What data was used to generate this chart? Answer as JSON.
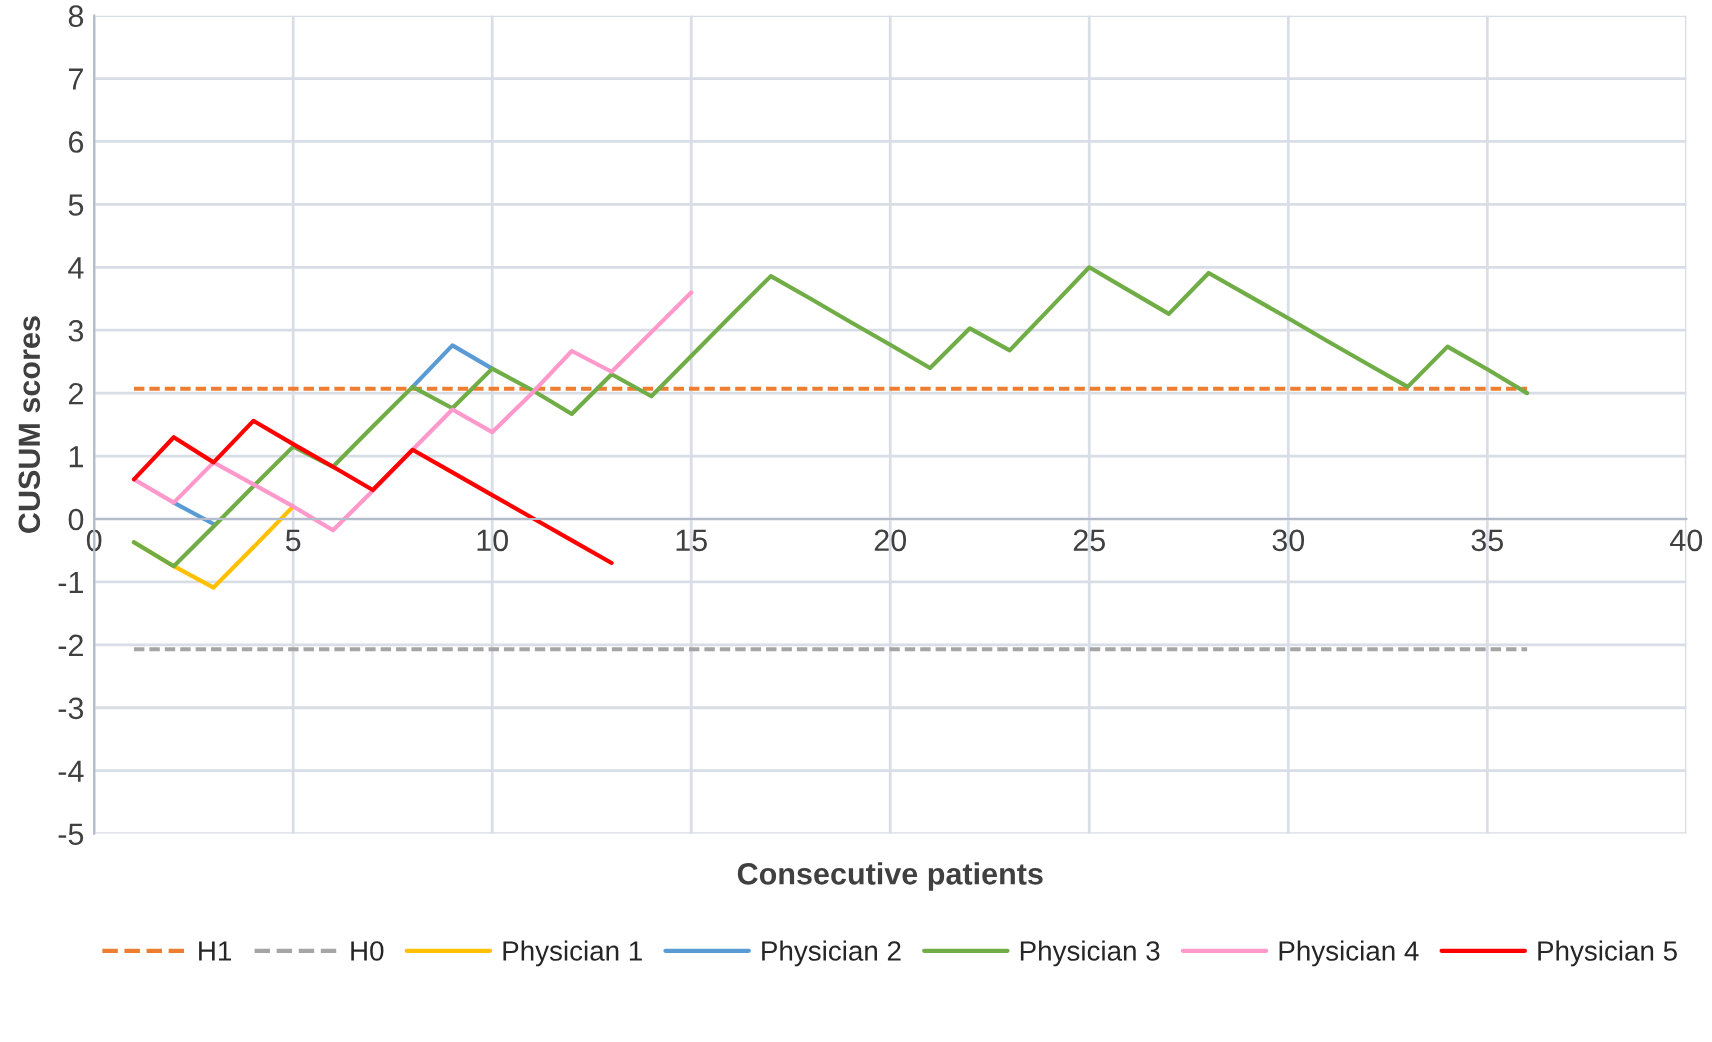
{
  "chart_data": {
    "type": "line",
    "xlabel": "Consecutive patients",
    "ylabel": "CUSUM scores",
    "xlim": [
      0,
      40
    ],
    "xticks": [
      0,
      5,
      10,
      15,
      20,
      25,
      30,
      35,
      40
    ],
    "ylim": [
      -5,
      8
    ],
    "yticks": [
      -5,
      -4,
      -3,
      -2,
      -1,
      0,
      1,
      2,
      3,
      4,
      5,
      6,
      7,
      8
    ],
    "grid": true,
    "legend": "bottom",
    "marker": "none",
    "series": [
      {
        "name": "H1",
        "color": "#ed7d31",
        "line_style": "dashed",
        "x": [
          1,
          36
        ],
        "values": [
          2.07,
          2.07
        ]
      },
      {
        "name": "H0",
        "color": "#a5a5a5",
        "line_style": "dashed",
        "x": [
          1,
          36
        ],
        "values": [
          -2.07,
          -2.07
        ]
      },
      {
        "name": "Physician 1",
        "color": "#ffc000",
        "x": [
          1,
          2,
          3,
          4,
          5
        ],
        "values": [
          -0.37,
          -0.75,
          -1.09,
          -0.45,
          0.2
        ]
      },
      {
        "name": "Physician 2",
        "color": "#5b9bd5",
        "x": [
          2,
          3,
          4,
          5,
          6,
          7,
          8,
          9,
          10
        ],
        "values": [
          0.26,
          -0.08,
          null,
          null,
          null,
          null,
          2.1,
          2.76,
          2.39
        ]
      },
      {
        "name": "Physician 3",
        "color": "#70ad47",
        "x": [
          1,
          2,
          3,
          4,
          5,
          6,
          7,
          8,
          9,
          10,
          11,
          12,
          13,
          14,
          15,
          16,
          17,
          18,
          19,
          20,
          21,
          22,
          23,
          24,
          25,
          26,
          27,
          28,
          29,
          30,
          31,
          32,
          33,
          34,
          35,
          36
        ],
        "values": [
          -0.37,
          -0.75,
          -0.12,
          0.52,
          1.15,
          0.83,
          1.47,
          2.1,
          1.76,
          2.39,
          2.05,
          1.67,
          2.3,
          1.95,
          2.59,
          3.23,
          3.86,
          3.5,
          3.13,
          2.77,
          2.4,
          3.03,
          2.68,
          3.34,
          4.0,
          3.63,
          3.26,
          3.91,
          3.55,
          3.19,
          2.82,
          2.46,
          2.1,
          2.74,
          2.38,
          2.0
        ]
      },
      {
        "name": "Physician 4",
        "color": "#ff99cc",
        "x": [
          1,
          2,
          3,
          4,
          5,
          6,
          7,
          8,
          9,
          10,
          11,
          12,
          13,
          14,
          15
        ],
        "values": [
          0.63,
          0.26,
          0.9,
          0.55,
          0.2,
          -0.18,
          0.45,
          1.1,
          1.74,
          1.38,
          2.0,
          2.67,
          2.34,
          2.97,
          3.6
        ]
      },
      {
        "name": "Physician 5",
        "color": "#ff0000",
        "x": [
          1,
          2,
          3,
          4,
          5,
          6,
          7,
          8,
          9,
          10,
          11,
          12,
          13
        ],
        "values": [
          0.63,
          1.3,
          0.9,
          1.56,
          1.19,
          0.83,
          0.46,
          1.1,
          0.74,
          0.38,
          0.02,
          -0.34,
          -0.7
        ]
      }
    ]
  }
}
